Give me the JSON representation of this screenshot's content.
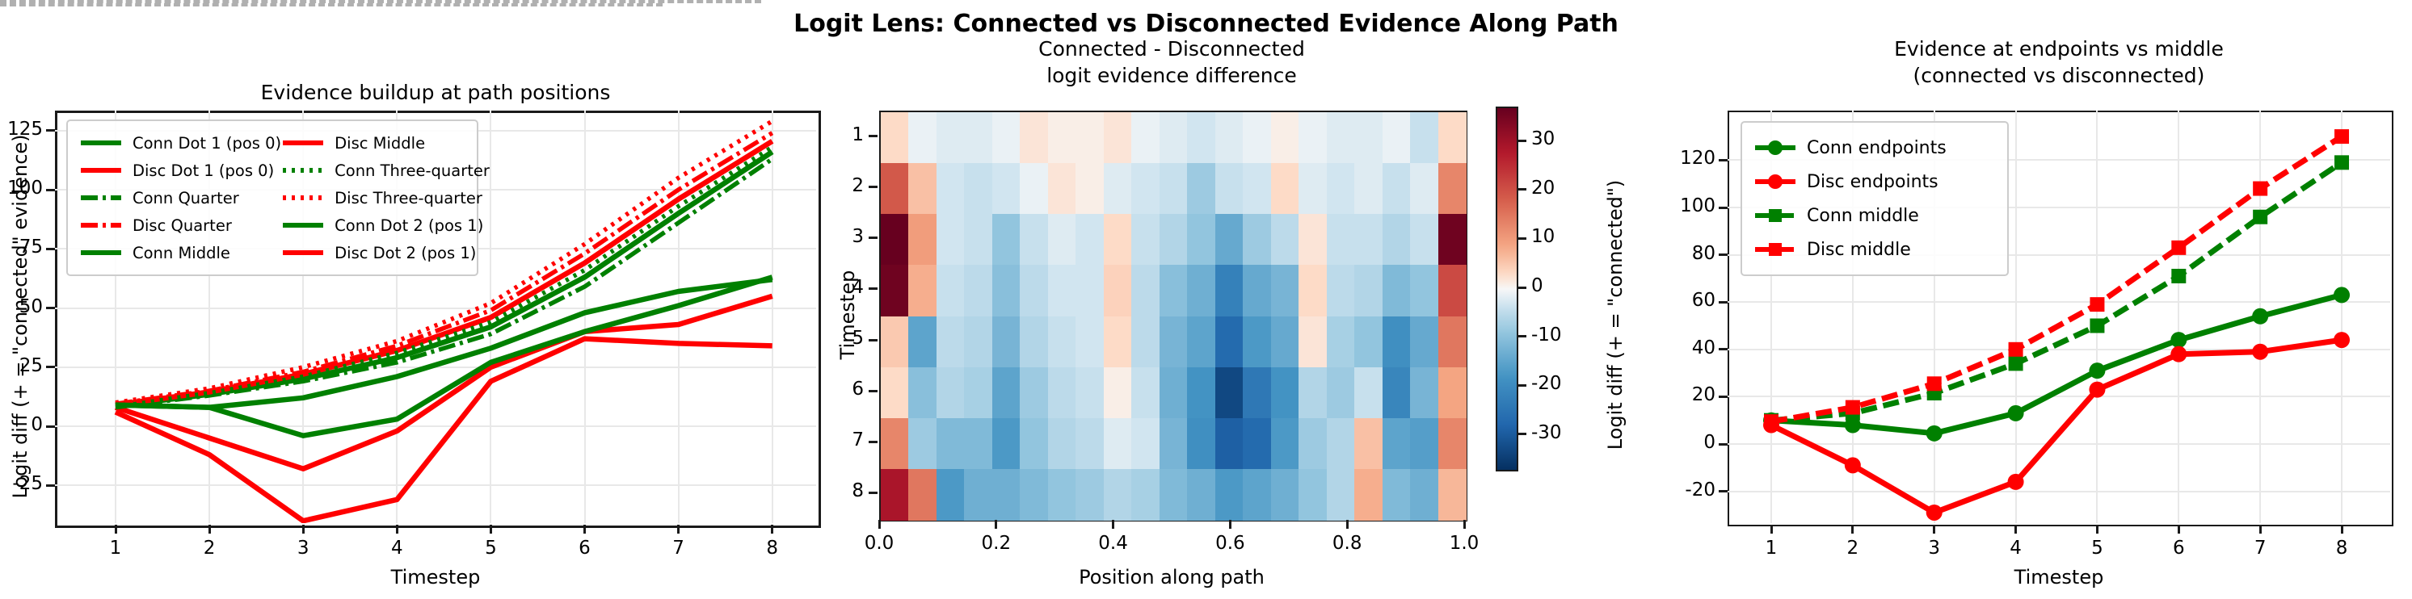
{
  "suptitle": "Logit Lens: Connected vs Disconnected Evidence Along Path",
  "accent_colors": {
    "connected_green": "#008000",
    "disconnected_red": "#ff0000",
    "zero_line_gray": "#b0b0b0",
    "grid_gray": "#e8e8e8"
  },
  "chart_data": [
    {
      "type": "line",
      "title": "Evidence buildup at path positions",
      "xlabel": "Timestep",
      "ylabel": "Logit diff (+ = \"connected\" evidence)",
      "x": [
        1,
        2,
        3,
        4,
        5,
        6,
        7,
        8
      ],
      "xtick_labels": [
        "1",
        "2",
        "3",
        "4",
        "5",
        "6",
        "7",
        "8"
      ],
      "ytick_values": [
        125,
        100,
        75,
        50,
        25,
        0,
        -25
      ],
      "ytick_labels": [
        "125",
        "100",
        "75",
        "50",
        "25",
        "0",
        "-25"
      ],
      "ylim": [
        -46,
        133
      ],
      "grid": true,
      "zero_line": 0,
      "legend_position": "upper-left",
      "legend_columns": 2,
      "series": [
        {
          "name": "Conn Dot 1 (pos 0)",
          "color": "#008000",
          "style": "solid",
          "values": [
            9,
            8,
            12,
            21,
            33,
            48,
            57,
            62
          ]
        },
        {
          "name": "Disc Dot 1 (pos 0)",
          "color": "#ff0000",
          "style": "solid",
          "values": [
            8,
            -5,
            -18,
            -2,
            25,
            40,
            43,
            55
          ]
        },
        {
          "name": "Conn Quarter",
          "color": "#008000",
          "style": "dashdot",
          "values": [
            8,
            13,
            19,
            27,
            39,
            59,
            86,
            113
          ]
        },
        {
          "name": "Disc Quarter",
          "color": "#ff0000",
          "style": "dashdot",
          "values": [
            9.5,
            15,
            23,
            34,
            49,
            73,
            100,
            124
          ]
        },
        {
          "name": "Conn Middle",
          "color": "#008000",
          "style": "solid",
          "values": [
            8.5,
            13.5,
            20,
            29,
            42,
            63,
            90,
            116
          ]
        },
        {
          "name": "Disc Middle",
          "color": "#ff0000",
          "style": "solid",
          "values": [
            9,
            14.5,
            22,
            32,
            46,
            69,
            96,
            120.5
          ]
        },
        {
          "name": "Conn Three-quarter",
          "color": "#008000",
          "style": "dotted",
          "values": [
            9,
            14,
            21,
            31,
            44,
            66,
            93,
            118
          ]
        },
        {
          "name": "Disc Three-quarter",
          "color": "#ff0000",
          "style": "dotted",
          "values": [
            10,
            16,
            25,
            36,
            52,
            77,
            105,
            129
          ]
        },
        {
          "name": "Conn Dot 2 (pos 1)",
          "color": "#008000",
          "style": "solid",
          "values": [
            9,
            8,
            -4,
            3,
            27,
            40,
            51,
            63
          ]
        },
        {
          "name": "Disc Dot 2 (pos 1)",
          "color": "#ff0000",
          "style": "solid",
          "values": [
            6,
            -12,
            -40,
            -31,
            19,
            37,
            35,
            34
          ]
        }
      ]
    },
    {
      "type": "heatmap",
      "title_line1": "Connected - Disconnected",
      "title_line2": "logit evidence difference",
      "xlabel": "Position along path",
      "ylabel": "Timestep",
      "xtick_values": [
        0.0,
        0.2,
        0.4,
        0.6,
        0.8,
        1.0
      ],
      "xtick_labels": [
        "0.0",
        "0.2",
        "0.4",
        "0.6",
        "0.8",
        "1.0"
      ],
      "ytick_labels": [
        "1",
        "2",
        "3",
        "4",
        "5",
        "6",
        "7",
        "8"
      ],
      "vmin": -37,
      "vmax": 37,
      "colorbar_tick_values": [
        30,
        20,
        10,
        0,
        -10,
        -20,
        -30
      ],
      "colorbar_tick_labels": [
        "30",
        "20",
        "10",
        "0",
        "-10",
        "-20",
        "-30"
      ],
      "values": [
        [
          3,
          -1,
          -2,
          -2,
          -1,
          2,
          1,
          1,
          2,
          -1,
          -2,
          -3,
          -2,
          -1,
          1,
          -1,
          -2,
          -2,
          -1,
          -4,
          3
        ],
        [
          19,
          6,
          -3,
          -4,
          -3,
          -1,
          2,
          1,
          -2,
          -3,
          -4,
          -8,
          -4,
          -3,
          3,
          -2,
          -3,
          -2,
          -4,
          -2,
          13
        ],
        [
          37,
          10,
          -3,
          -4,
          -9,
          -4,
          -2,
          -3,
          3,
          -4,
          -6,
          -9,
          -14,
          -8,
          -5,
          2,
          -4,
          -4,
          -6,
          -4,
          36
        ],
        [
          36,
          8,
          -4,
          -5,
          -10,
          -5,
          -3,
          -3,
          4,
          -5,
          -10,
          -13,
          -22,
          -14,
          -12,
          3,
          -5,
          -6,
          -11,
          -9,
          21
        ],
        [
          5,
          -15,
          -5,
          -6,
          -12,
          -6,
          -4,
          -3,
          3,
          -5,
          -12,
          -15,
          -27,
          -17,
          -14,
          2,
          -7,
          -9,
          -19,
          -14,
          15
        ],
        [
          3,
          -10,
          -6,
          -7,
          -15,
          -8,
          -5,
          -4,
          1,
          -4,
          -13,
          -18,
          -33,
          -24,
          -18,
          -6,
          -8,
          -4,
          -21,
          -12,
          9
        ],
        [
          13,
          -8,
          -11,
          -11,
          -17,
          -9,
          -6,
          -5,
          -2,
          -3,
          -12,
          -19,
          -29,
          -27,
          -17,
          -8,
          -6,
          6,
          -15,
          -16,
          13
        ],
        [
          29,
          15,
          -17,
          -13,
          -13,
          -11,
          -9,
          -8,
          -6,
          -7,
          -11,
          -13,
          -17,
          -15,
          -13,
          -9,
          -6,
          8,
          -11,
          -13,
          7
        ]
      ]
    },
    {
      "type": "line",
      "title_line1": "Evidence at endpoints vs middle",
      "title_line2": "(connected vs disconnected)",
      "xlabel": "Timestep",
      "ylabel": "Logit diff (+ = \"connected\")",
      "x": [
        1,
        2,
        3,
        4,
        5,
        6,
        7,
        8
      ],
      "xtick_labels": [
        "1",
        "2",
        "3",
        "4",
        "5",
        "6",
        "7",
        "8"
      ],
      "ytick_values": [
        120,
        100,
        80,
        60,
        40,
        20,
        0,
        -20
      ],
      "ytick_labels": [
        "120",
        "100",
        "80",
        "60",
        "40",
        "20",
        "0",
        "-20"
      ],
      "ylim": [
        -33,
        140
      ],
      "grid": true,
      "zero_line": 0,
      "legend_position": "upper-left",
      "legend_columns": 1,
      "series": [
        {
          "name": "Conn endpoints",
          "color": "#008000",
          "style": "solid",
          "marker": "circle",
          "values": [
            10,
            8,
            4.5,
            13,
            31,
            44,
            54,
            63
          ]
        },
        {
          "name": "Disc endpoints",
          "color": "#ff0000",
          "style": "solid",
          "marker": "circle",
          "values": [
            8,
            -9,
            -29,
            -16,
            23,
            38,
            39,
            44
          ]
        },
        {
          "name": "Conn middle",
          "color": "#008000",
          "style": "dashed",
          "marker": "square",
          "values": [
            10,
            13,
            21.5,
            34,
            50,
            71,
            96,
            119
          ]
        },
        {
          "name": "Disc middle",
          "color": "#ff0000",
          "style": "dashed",
          "marker": "square",
          "values": [
            9.5,
            15.5,
            25.5,
            40,
            59,
            83,
            108,
            130
          ]
        }
      ]
    }
  ]
}
